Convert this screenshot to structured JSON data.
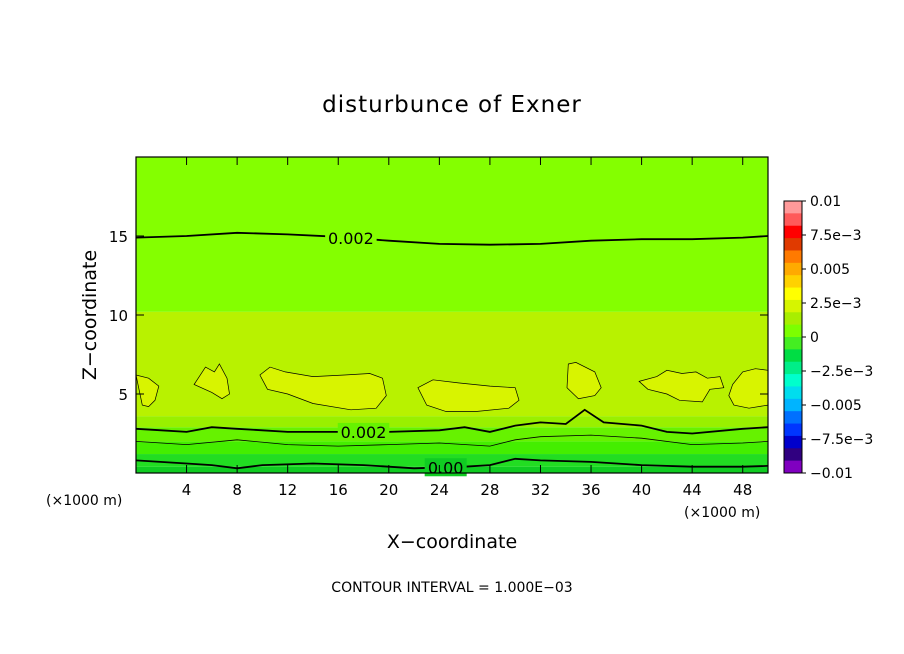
{
  "chart_data": {
    "type": "heatmap",
    "title": "disturbunce of Exner",
    "xlabel": "X−coordinate",
    "ylabel": "Z−coordinate",
    "x_unit_left": "(×1000 m)",
    "x_unit_right": "(×1000 m)",
    "xlim": [
      0,
      50
    ],
    "ylim": [
      0,
      20
    ],
    "x_ticks": [
      4,
      8,
      12,
      16,
      20,
      24,
      28,
      32,
      36,
      40,
      44,
      48
    ],
    "y_ticks": [
      5,
      10,
      15
    ],
    "colorbar": {
      "labels": [
        "0.01",
        "7.5e−3",
        "0.005",
        "2.5e−3",
        "0",
        "−2.5e−3",
        "−0.005",
        "−7.5e−3",
        "−0.01"
      ],
      "colors": [
        "#ff9a9a",
        "#ff5a5a",
        "#ff0000",
        "#e03a00",
        "#ff7a00",
        "#ffaa00",
        "#ffd200",
        "#ffff00",
        "#d6f500",
        "#a8ee00",
        "#7cff00",
        "#44ee22",
        "#00dd44",
        "#00ee88",
        "#00ffcc",
        "#00ddee",
        "#00b4ff",
        "#0070ff",
        "#0036ff",
        "#0000cc",
        "#300080",
        "#8000c0"
      ],
      "min": -0.01,
      "max": 0.01
    },
    "bands": [
      {
        "z_bottom": 0.0,
        "z_top": 0.4,
        "value": 0.0004,
        "color": "#10cc22"
      },
      {
        "z_bottom": 0.4,
        "z_top": 1.2,
        "value": 0.0008,
        "color": "#22dd22"
      },
      {
        "z_bottom": 1.2,
        "z_top": 2.0,
        "value": 0.0012,
        "color": "#44ee00"
      },
      {
        "z_bottom": 2.0,
        "z_top": 2.9,
        "value": 0.0016,
        "color": "#66f200"
      },
      {
        "z_bottom": 2.9,
        "z_top": 3.6,
        "value": 0.0021,
        "color": "#99f000"
      },
      {
        "z_bottom": 3.6,
        "z_top": 10.2,
        "value": 0.0024,
        "color": "#b8f200"
      },
      {
        "z_bottom": 10.2,
        "z_top": 20.0,
        "value": 0.0019,
        "color": "#84ff00"
      }
    ],
    "contours": [
      {
        "label": "0.002",
        "label_x": 17,
        "points": [
          [
            0,
            14.9
          ],
          [
            4,
            15.0
          ],
          [
            8,
            15.2
          ],
          [
            12,
            15.1
          ],
          [
            16,
            14.95
          ],
          [
            20,
            14.7
          ],
          [
            24,
            14.5
          ],
          [
            28,
            14.45
          ],
          [
            32,
            14.5
          ],
          [
            36,
            14.7
          ],
          [
            40,
            14.8
          ],
          [
            44,
            14.8
          ],
          [
            48,
            14.9
          ],
          [
            50,
            15.0
          ]
        ]
      },
      {
        "label": "0.002",
        "label_x": 18,
        "points": [
          [
            0,
            2.8
          ],
          [
            2,
            2.7
          ],
          [
            4,
            2.6
          ],
          [
            6,
            2.9
          ],
          [
            8,
            2.8
          ],
          [
            10,
            2.7
          ],
          [
            12,
            2.6
          ],
          [
            16,
            2.6
          ],
          [
            20,
            2.6
          ],
          [
            24,
            2.7
          ],
          [
            26,
            2.9
          ],
          [
            28,
            2.6
          ],
          [
            30,
            3.0
          ],
          [
            32,
            3.2
          ],
          [
            34,
            3.1
          ],
          [
            35.5,
            4.0
          ],
          [
            37,
            3.2
          ],
          [
            40,
            3.0
          ],
          [
            42,
            2.6
          ],
          [
            44,
            2.5
          ],
          [
            48,
            2.8
          ],
          [
            50,
            2.9
          ]
        ]
      },
      {
        "label": "",
        "label_x": 0,
        "points": [
          [
            0,
            2.0
          ],
          [
            4,
            1.8
          ],
          [
            8,
            2.1
          ],
          [
            12,
            1.8
          ],
          [
            16,
            1.7
          ],
          [
            20,
            1.8
          ],
          [
            24,
            1.9
          ],
          [
            28,
            1.7
          ],
          [
            30,
            2.1
          ],
          [
            32,
            2.3
          ],
          [
            36,
            2.4
          ],
          [
            40,
            2.2
          ],
          [
            44,
            1.8
          ],
          [
            48,
            1.9
          ],
          [
            50,
            2.0
          ]
        ]
      },
      {
        "label": "0.00",
        "label_x": 24.5,
        "points": [
          [
            0,
            0.8
          ],
          [
            4,
            0.6
          ],
          [
            6,
            0.5
          ],
          [
            8,
            0.3
          ],
          [
            10,
            0.5
          ],
          [
            14,
            0.6
          ],
          [
            18,
            0.5
          ],
          [
            22,
            0.3
          ],
          [
            26,
            0.4
          ],
          [
            28,
            0.5
          ],
          [
            30,
            0.9
          ],
          [
            32,
            0.8
          ],
          [
            36,
            0.7
          ],
          [
            40,
            0.5
          ],
          [
            44,
            0.4
          ],
          [
            48,
            0.4
          ],
          [
            50,
            0.45
          ]
        ]
      }
    ],
    "patches": [
      {
        "points": [
          [
            0.5,
            4.3
          ],
          [
            0,
            6.2
          ],
          [
            1,
            6.0
          ],
          [
            1.8,
            5.5
          ],
          [
            1.5,
            4.6
          ],
          [
            1,
            4.2
          ]
        ]
      },
      {
        "points": [
          [
            4.6,
            5.6
          ],
          [
            5.5,
            6.7
          ],
          [
            6.2,
            6.4
          ],
          [
            6.6,
            6.9
          ],
          [
            7.2,
            6.0
          ],
          [
            7.4,
            5.0
          ],
          [
            6.8,
            4.7
          ],
          [
            6.0,
            5.1
          ]
        ]
      },
      {
        "points": [
          [
            9.8,
            6.2
          ],
          [
            10.6,
            6.7
          ],
          [
            11.8,
            6.4
          ],
          [
            14,
            6.1
          ],
          [
            16.5,
            6.2
          ],
          [
            18.5,
            6.3
          ],
          [
            19.5,
            6.0
          ],
          [
            19.8,
            4.9
          ],
          [
            19,
            4.1
          ],
          [
            17,
            4.0
          ],
          [
            14,
            4.4
          ],
          [
            12,
            5.0
          ],
          [
            10.4,
            5.3
          ]
        ]
      },
      {
        "points": [
          [
            22.3,
            5.4
          ],
          [
            23.5,
            5.9
          ],
          [
            25.5,
            5.7
          ],
          [
            28,
            5.5
          ],
          [
            30,
            5.4
          ],
          [
            30.3,
            4.6
          ],
          [
            29.5,
            4.1
          ],
          [
            27,
            3.9
          ],
          [
            24.5,
            3.9
          ],
          [
            23,
            4.3
          ]
        ]
      },
      {
        "points": [
          [
            34.2,
            6.9
          ],
          [
            34.8,
            7.0
          ],
          [
            36.3,
            6.4
          ],
          [
            36.8,
            5.4
          ],
          [
            36.3,
            4.9
          ],
          [
            35,
            4.7
          ],
          [
            34.1,
            5.4
          ]
        ]
      },
      {
        "points": [
          [
            39.8,
            5.8
          ],
          [
            41.2,
            6.1
          ],
          [
            42,
            6.5
          ],
          [
            43.2,
            6.3
          ],
          [
            44.3,
            6.4
          ],
          [
            45.2,
            6.0
          ],
          [
            46.2,
            6.1
          ],
          [
            46.5,
            5.4
          ],
          [
            45.4,
            5.3
          ],
          [
            44.8,
            4.5
          ],
          [
            43,
            4.6
          ],
          [
            42,
            5.0
          ],
          [
            40.5,
            5.3
          ]
        ]
      },
      {
        "points": [
          [
            47.2,
            5.6
          ],
          [
            48,
            6.4
          ],
          [
            49,
            6.6
          ],
          [
            50,
            6.5
          ],
          [
            50,
            4.3
          ],
          [
            48.5,
            4.1
          ],
          [
            47.3,
            4.3
          ],
          [
            46.9,
            4.9
          ]
        ]
      }
    ]
  },
  "footer": {
    "contour_interval": "CONTOUR INTERVAL = 1.000E−03"
  }
}
